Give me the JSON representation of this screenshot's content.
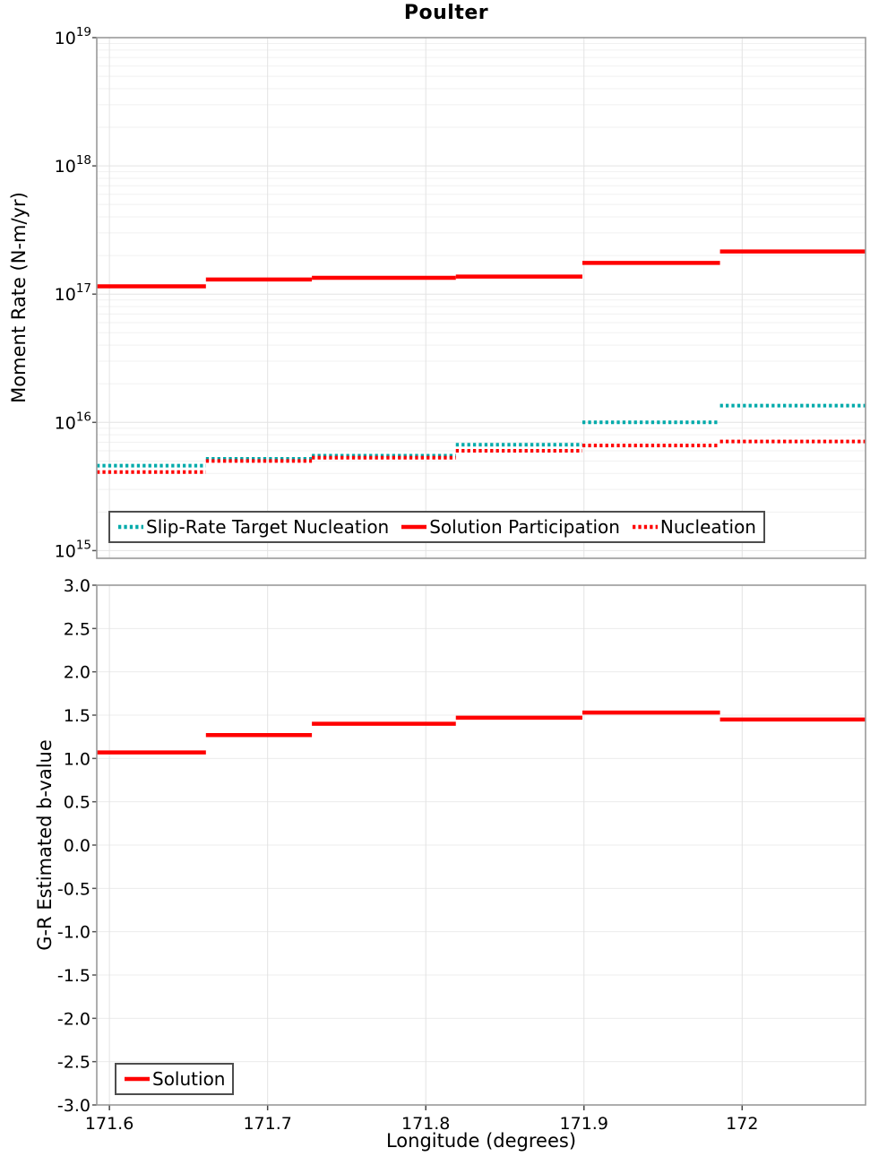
{
  "title": "Poulter",
  "x_axis": {
    "label": "Longitude (degrees)",
    "tick_values": [
      171.6,
      171.7,
      171.8,
      171.9,
      172.0
    ],
    "tick_labels": [
      "171.6",
      "171.7",
      "171.8",
      "171.9",
      "172"
    ],
    "range": [
      171.592,
      172.078
    ]
  },
  "chart_data": [
    {
      "type": "step",
      "title": "Poulter",
      "ylabel": "Moment Rate (N-m/yr)",
      "yscale": "log",
      "ylim_log10": [
        14.94,
        19
      ],
      "ytick_exponents": [
        15,
        16,
        17,
        18,
        19
      ],
      "grid": true,
      "legend_position": "bottom-left-inside",
      "x_edges": [
        171.592,
        171.661,
        171.728,
        171.819,
        171.899,
        171.986,
        172.078
      ],
      "series": [
        {
          "name": "Slip-Rate Target Nucleation",
          "color": "#00aaaa",
          "style": "dotted",
          "values": [
            4600000000000000.0,
            5200000000000000.0,
            5500000000000000.0,
            6700000000000000.0,
            1e+16,
            1.35e+16
          ]
        },
        {
          "name": "Solution Participation",
          "color": "#ff0000",
          "style": "solid",
          "values": [
            1.15e+17,
            1.3e+17,
            1.34e+17,
            1.37e+17,
            1.75e+17,
            2.15e+17
          ]
        },
        {
          "name": "Nucleation",
          "color": "#ff0000",
          "style": "dotted",
          "values": [
            4100000000000000.0,
            5000000000000000.0,
            5300000000000000.0,
            6000000000000000.0,
            6600000000000000.0,
            7100000000000000.0
          ]
        }
      ]
    },
    {
      "type": "step",
      "ylabel": "G-R Estimated b-value",
      "yscale": "linear",
      "ylim": [
        -3.0,
        3.0
      ],
      "ytick_values": [
        3.0,
        2.5,
        2.0,
        1.5,
        1.0,
        0.5,
        0.0,
        -0.5,
        -1.0,
        -1.5,
        -2.0,
        -2.5,
        -3.0
      ],
      "ytick_labels": [
        "3.0",
        "2.5",
        "2.0",
        "1.5",
        "1.0",
        "0.5",
        "0.0",
        "-0.5",
        "-1.0",
        "-1.5",
        "-2.0",
        "-2.5",
        "-3.0"
      ],
      "grid": true,
      "legend_position": "bottom-left-inside",
      "x_edges": [
        171.592,
        171.661,
        171.728,
        171.819,
        171.899,
        171.986,
        172.078
      ],
      "series": [
        {
          "name": "Solution",
          "color": "#ff0000",
          "style": "solid",
          "values": [
            1.07,
            1.27,
            1.4,
            1.47,
            1.53,
            1.45
          ]
        }
      ]
    }
  ]
}
